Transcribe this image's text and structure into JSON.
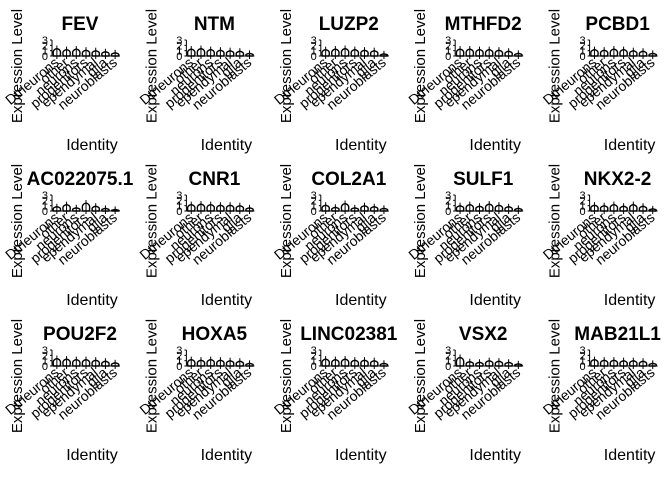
{
  "chart_data": {
    "type": "violin",
    "layout": {
      "rows": 3,
      "cols": 5
    },
    "x_label": "Identity",
    "y_label": "Expression Level",
    "y_ticks": [
      "0",
      "1",
      "2",
      "3"
    ],
    "categories": [
      "Dtneurons",
      "other",
      "neurons",
      "progenitors",
      "ependymal",
      "glia",
      "neuroblasts"
    ],
    "panels": [
      {
        "title": "FEV",
        "values": [
          1.4,
          1.2,
          1.3,
          1.1,
          1.0,
          0.8,
          0.6
        ]
      },
      {
        "title": "NTM",
        "values": [
          1.3,
          1.4,
          1.2,
          1.1,
          1.0,
          0.9,
          0.5
        ]
      },
      {
        "title": "LUZP2",
        "values": [
          1.2,
          1.3,
          1.4,
          1.2,
          1.1,
          1.0,
          0.4
        ]
      },
      {
        "title": "MTHFD2",
        "values": [
          1.3,
          1.3,
          1.2,
          1.2,
          1.1,
          0.9,
          0.5
        ]
      },
      {
        "title": "PCBD1",
        "values": [
          1.2,
          1.1,
          1.3,
          1.2,
          1.0,
          0.9,
          0.5
        ]
      },
      {
        "title": "AC022075.1",
        "values": [
          0.8,
          1.2,
          0.6,
          1.5,
          0.9,
          0.5,
          0.3
        ]
      },
      {
        "title": "CNR1",
        "values": [
          1.2,
          1.3,
          1.2,
          1.1,
          1.1,
          1.0,
          0.6
        ]
      },
      {
        "title": "COL2A1",
        "values": [
          1.1,
          0.7,
          1.4,
          0.6,
          1.0,
          0.8,
          0.5
        ]
      },
      {
        "title": "SULF1",
        "values": [
          1.0,
          1.2,
          0.9,
          1.3,
          1.1,
          0.8,
          0.5
        ]
      },
      {
        "title": "NKX2-2",
        "values": [
          1.1,
          1.0,
          1.2,
          0.9,
          1.2,
          0.9,
          0.4
        ]
      },
      {
        "title": "POU2F2",
        "values": [
          1.4,
          1.3,
          1.2,
          1.2,
          1.1,
          0.9,
          0.6
        ]
      },
      {
        "title": "HOXA5",
        "values": [
          1.2,
          1.1,
          1.2,
          1.1,
          1.0,
          0.9,
          0.5
        ]
      },
      {
        "title": "LINC02381",
        "values": [
          1.3,
          1.2,
          1.3,
          1.1,
          1.1,
          1.0,
          0.5
        ]
      },
      {
        "title": "VSX2",
        "values": [
          1.6,
          0.8,
          0.7,
          1.0,
          0.9,
          0.7,
          0.4
        ]
      },
      {
        "title": "MAB21L1",
        "values": [
          1.2,
          1.1,
          1.1,
          1.0,
          1.0,
          0.9,
          0.5
        ]
      }
    ],
    "ylim": [
      0,
      3
    ],
    "legend": "none"
  }
}
